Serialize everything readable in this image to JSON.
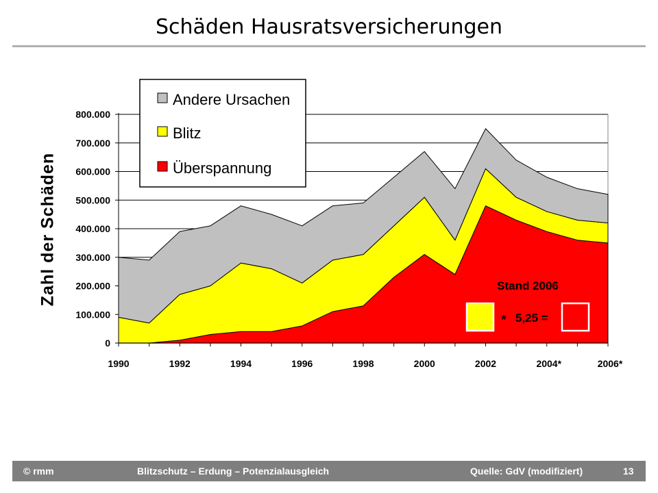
{
  "slide": {
    "title": "Schäden Hausratsversicherungen",
    "footer": {
      "left": "© rmm",
      "center": "Blitzschutz – Erdung – Potenzialausgleich",
      "source": "Quelle: GdV (modifiziert)",
      "page": "13"
    }
  },
  "chart_data": {
    "type": "area",
    "stacked": true,
    "title": "",
    "xlabel": "",
    "ylabel": "Zahl der Schäden",
    "x": [
      1990,
      1991,
      1992,
      1993,
      1994,
      1995,
      1996,
      1997,
      1998,
      1999,
      2000,
      2001,
      2002,
      2003,
      2004,
      2005,
      2006
    ],
    "x_tick_labels": [
      {
        "x": 1990,
        "label": "1990"
      },
      {
        "x": 1992,
        "label": "1992"
      },
      {
        "x": 1994,
        "label": "1994"
      },
      {
        "x": 1996,
        "label": "1996"
      },
      {
        "x": 1998,
        "label": "1998"
      },
      {
        "x": 2000,
        "label": "2000"
      },
      {
        "x": 2002,
        "label": "2002"
      },
      {
        "x": 2004,
        "label": "2004*"
      },
      {
        "x": 2006,
        "label": "2006*"
      }
    ],
    "y_ticks": [
      {
        "v": 0,
        "label": "0"
      },
      {
        "v": 100000,
        "label": "100.000"
      },
      {
        "v": 200000,
        "label": "200.000"
      },
      {
        "v": 300000,
        "label": "300.000"
      },
      {
        "v": 400000,
        "label": "400.000"
      },
      {
        "v": 500000,
        "label": "500.000"
      },
      {
        "v": 600000,
        "label": "600.000"
      },
      {
        "v": 700000,
        "label": "700.000"
      },
      {
        "v": 800000,
        "label": "800.000"
      }
    ],
    "ylim": [
      0,
      800000
    ],
    "grid": true,
    "legend_position": "top-left",
    "series": [
      {
        "name": "Überspannung",
        "color": "#ff0000",
        "values": [
          0,
          0,
          10000,
          30000,
          40000,
          40000,
          60000,
          110000,
          130000,
          230000,
          310000,
          240000,
          480000,
          430000,
          390000,
          360000,
          350000
        ]
      },
      {
        "name": "Blitz",
        "color": "#ffff00",
        "values": [
          90000,
          70000,
          160000,
          170000,
          240000,
          220000,
          150000,
          180000,
          180000,
          180000,
          200000,
          120000,
          130000,
          80000,
          70000,
          70000,
          70000
        ]
      },
      {
        "name": "Andere Ursachen",
        "color": "#c0c0c0",
        "values": [
          210000,
          220000,
          220000,
          210000,
          200000,
          190000,
          200000,
          190000,
          180000,
          170000,
          160000,
          180000,
          140000,
          130000,
          120000,
          110000,
          100000
        ]
      }
    ],
    "legend_order": [
      "Andere Ursachen",
      "Blitz",
      "Überspannung"
    ],
    "annotation": {
      "heading": "Stand 2006",
      "formula_star": "*",
      "formula_text": "5,25 =",
      "left_box_color": "#ffff00",
      "right_box_color": "#ff0000"
    }
  }
}
